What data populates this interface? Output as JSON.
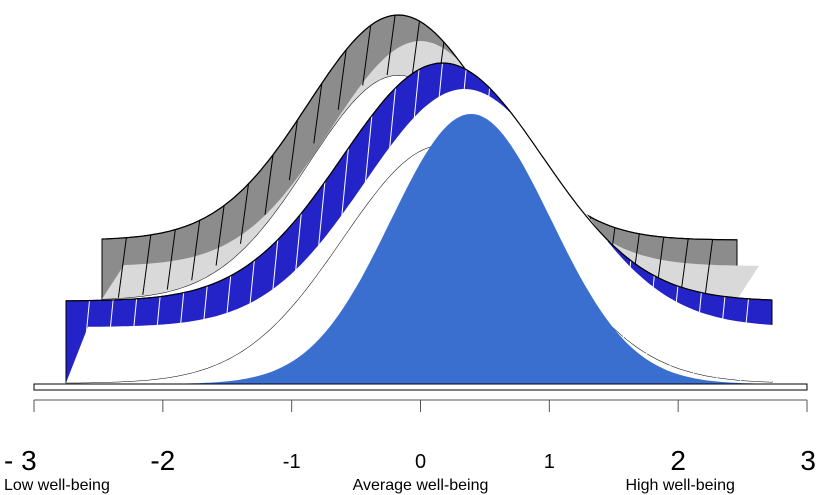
{
  "chart_data": {
    "type": "area",
    "title": "",
    "xlabel": "",
    "ylabel": "",
    "xlim": [
      -3,
      3
    ],
    "x_ticks": [
      "- 3",
      "-2",
      "-1",
      "0",
      "1",
      "2",
      "3"
    ],
    "x_tick_values": [
      -3,
      -2,
      -1,
      0,
      1,
      2,
      3
    ],
    "x_tick_emphasis": [
      "large",
      "large",
      "small",
      "small",
      "small",
      "large",
      "large"
    ],
    "axis_captions": [
      {
        "text": "Low well-being",
        "at": -3
      },
      {
        "text": "Average well-being",
        "at": 0
      },
      {
        "text": "High well-being",
        "at": 2
      }
    ],
    "series": [
      {
        "layer": "back",
        "mean": -0.2,
        "sd": 0.85,
        "face": "#d9d9d9",
        "band": "#8c8c8c"
      },
      {
        "layer": "middle",
        "mean": 0.2,
        "sd": 0.85,
        "face": "#ffffff",
        "band": "#2323c8"
      },
      {
        "layer": "front",
        "mean": 0.3,
        "sd": 0.75,
        "face": "#3a6fd0",
        "band": null
      }
    ],
    "grid": false,
    "legend": "none"
  }
}
